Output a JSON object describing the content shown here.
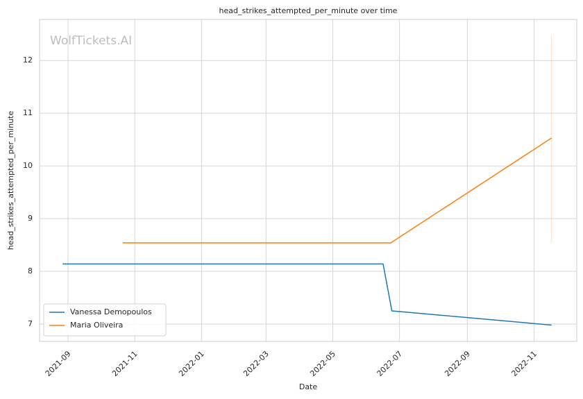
{
  "chart_data": {
    "type": "line",
    "title": "head_strikes_attempted_per_minute over time",
    "xlabel": "Date",
    "ylabel": "head_strikes_attempted_per_minute",
    "watermark": "WolfTickets.AI",
    "series": [
      {
        "name": "Vanessa Demopoulos",
        "color": "#1f77b4",
        "x": [
          "2021-08-27",
          "2022-06-16",
          "2022-06-24",
          "2022-11-17"
        ],
        "values": [
          8.14,
          8.14,
          7.25,
          6.98
        ]
      },
      {
        "name": "Maria Oliveira",
        "color": "#ff7f0e",
        "x": [
          "2021-10-21",
          "2022-06-23",
          "2022-11-17"
        ],
        "values": [
          8.54,
          8.54,
          10.53
        ],
        "interval": {
          "x": "2022-11-17",
          "low": 8.54,
          "high": 12.5
        }
      }
    ],
    "xlim": [
      "2021-08-06",
      "2022-12-10"
    ],
    "xticks": [
      "2021-09",
      "2021-11",
      "2022-01",
      "2022-03",
      "2022-05",
      "2022-07",
      "2022-09",
      "2022-11"
    ],
    "ylim": [
      6.67,
      12.78
    ],
    "yticks": [
      7,
      8,
      9,
      10,
      11,
      12
    ],
    "grid": true,
    "legend": "lower left"
  }
}
